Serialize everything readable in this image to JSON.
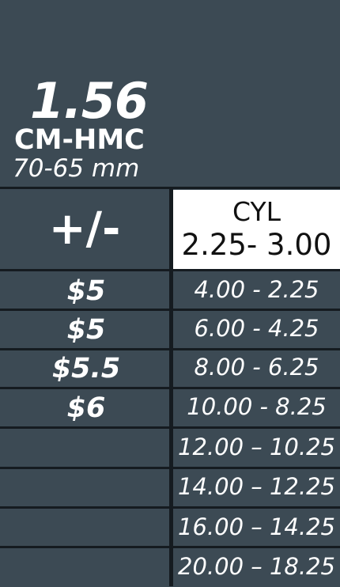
{
  "lens": {
    "index": "1.56",
    "coating": "CM-HMC",
    "diameter": "70-65 mm"
  },
  "table": {
    "sph_header": "+/-",
    "cyl_header_line1": "CYL",
    "cyl_header_line2": "2.25- 3.00",
    "rows": [
      {
        "price": "$5",
        "range": "4.00 - 2.25"
      },
      {
        "price": "$5",
        "range": "6.00 - 4.25"
      },
      {
        "price": "$5.5",
        "range": "8.00 - 6.25"
      },
      {
        "price": "$6",
        "range": "10.00 - 8.25"
      },
      {
        "price": "",
        "range": "12.00 – 10.25"
      },
      {
        "price": "",
        "range": "14.00 – 12.25"
      },
      {
        "price": "",
        "range": "16.00 – 14.25"
      },
      {
        "price": "",
        "range": "20.00 – 18.25"
      }
    ]
  },
  "colors": {
    "background": "#3c4a54",
    "grid_line": "#151b20",
    "header_cell": "#ffffff"
  }
}
